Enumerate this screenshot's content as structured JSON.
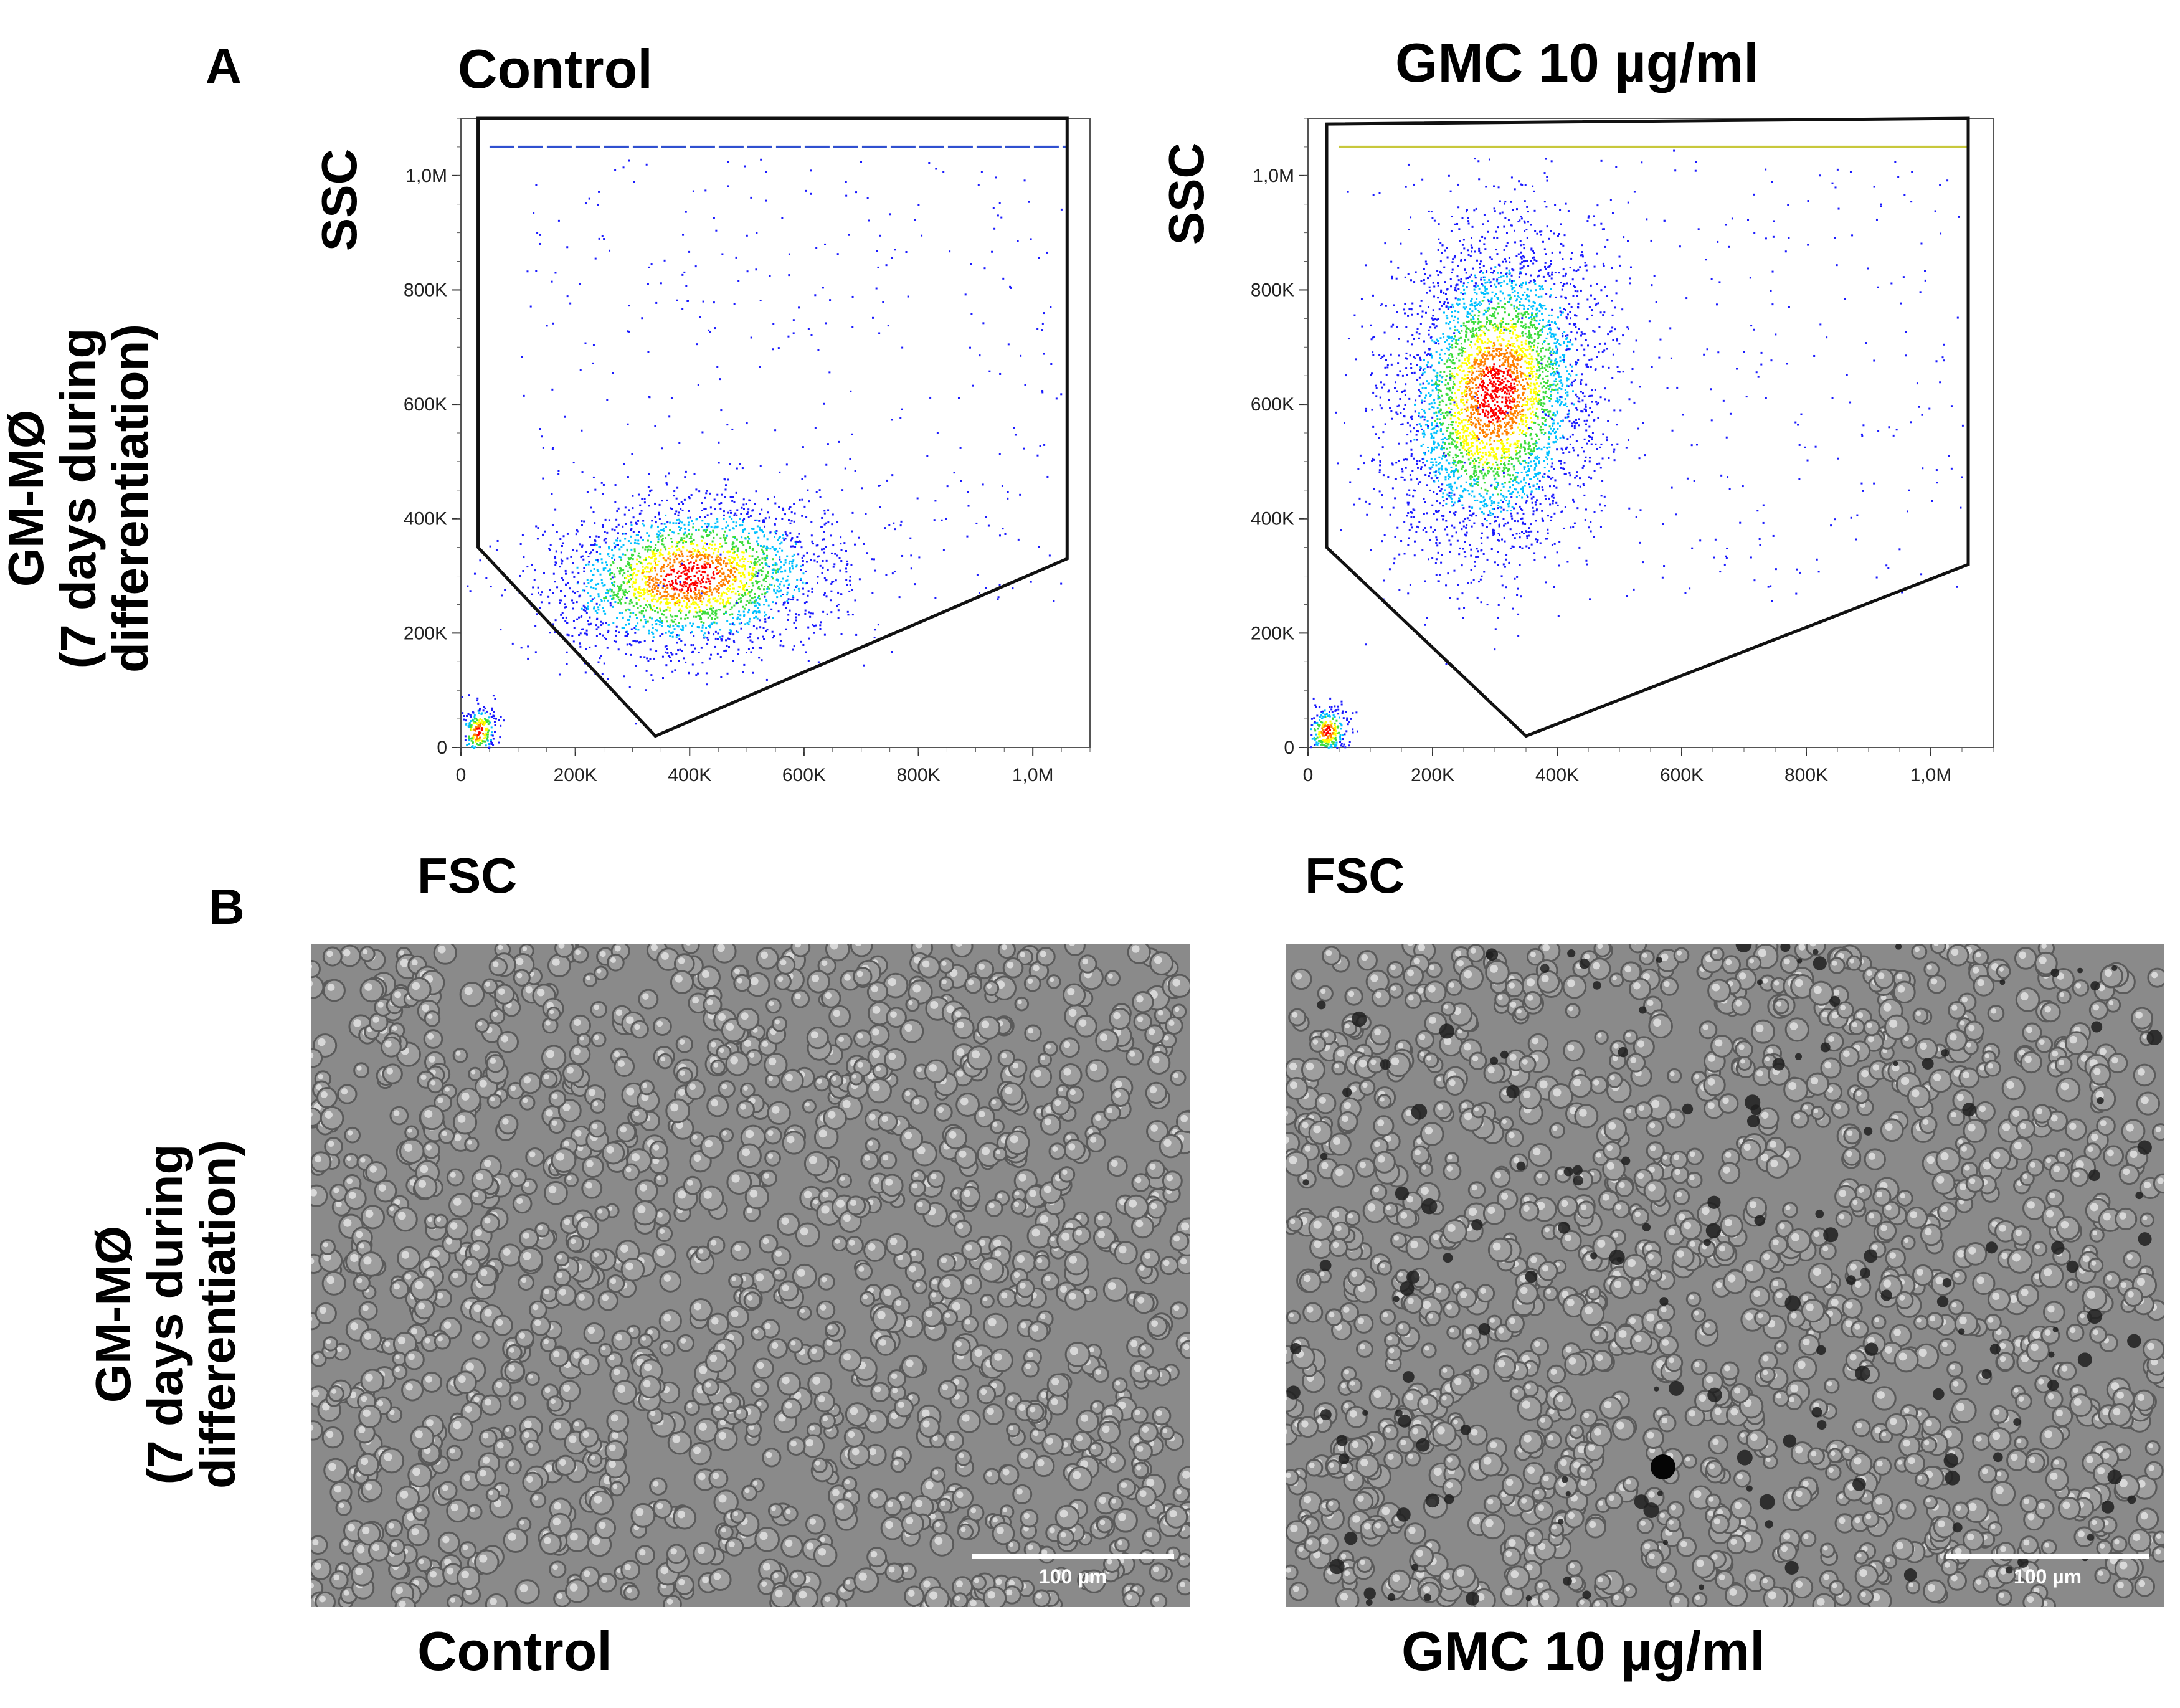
{
  "panels": {
    "a_letter": "A",
    "b_letter": "B"
  },
  "row_label": {
    "line1": "GM-MØ",
    "line2": "(7 days during",
    "line3": "differentiation)"
  },
  "chart_data": [
    {
      "type": "scatter",
      "subtype": "flow-cytometry density plot",
      "title": "Control",
      "xlabel": "FSC",
      "ylabel": "SSC",
      "x_ticks": [
        "0",
        "200K",
        "400K",
        "600K",
        "800K",
        "1,0M"
      ],
      "y_ticks": [
        "0",
        "200K",
        "400K",
        "600K",
        "800K",
        "1,0M"
      ],
      "xlim": [
        0,
        1100000
      ],
      "ylim": [
        0,
        1100000
      ],
      "gate_polygon": [
        [
          30000,
          1100000
        ],
        [
          1060000,
          1100000
        ],
        [
          1060000,
          330000
        ],
        [
          340000,
          20000
        ],
        [
          30000,
          350000
        ]
      ],
      "populations": [
        {
          "center": [
            400000,
            300000
          ],
          "spread": [
            110000,
            60000
          ],
          "count": 2600
        },
        {
          "center": [
            30000,
            30000
          ],
          "spread": [
            15000,
            20000
          ],
          "count": 250
        }
      ],
      "saturation_y": 1050000,
      "colors": [
        "#1a1aff",
        "#00c0ff",
        "#3cdc3c",
        "#ffff00",
        "#ff8000",
        "#ff0000"
      ]
    },
    {
      "type": "scatter",
      "subtype": "flow-cytometry density plot",
      "title": "GMC 10 µg/ml",
      "xlabel": "FSC",
      "ylabel": "SSC",
      "x_ticks": [
        "0",
        "200K",
        "400K",
        "600K",
        "800K",
        "1,0M"
      ],
      "y_ticks": [
        "0",
        "200K",
        "400K",
        "600K",
        "800K",
        "1,0M"
      ],
      "xlim": [
        0,
        1100000
      ],
      "ylim": [
        0,
        1100000
      ],
      "gate_polygon": [
        [
          30000,
          1090000
        ],
        [
          1060000,
          1100000
        ],
        [
          1060000,
          320000
        ],
        [
          350000,
          20000
        ],
        [
          30000,
          350000
        ]
      ],
      "populations": [
        {
          "center": [
            300000,
            620000
          ],
          "spread": [
            70000,
            120000
          ],
          "count": 4200
        },
        {
          "center": [
            30000,
            30000
          ],
          "spread": [
            15000,
            20000
          ],
          "count": 300
        }
      ],
      "saturation_y": 1050000,
      "colors": [
        "#1a1aff",
        "#00c0ff",
        "#3cdc3c",
        "#ffff00",
        "#ff8000",
        "#ff0000"
      ]
    }
  ],
  "micrographs": [
    {
      "caption": "Control",
      "scale_bar": "100 µm",
      "dark_particles": false
    },
    {
      "caption": "GMC 10 µg/ml",
      "scale_bar": "100 µm",
      "dark_particles": true
    }
  ]
}
